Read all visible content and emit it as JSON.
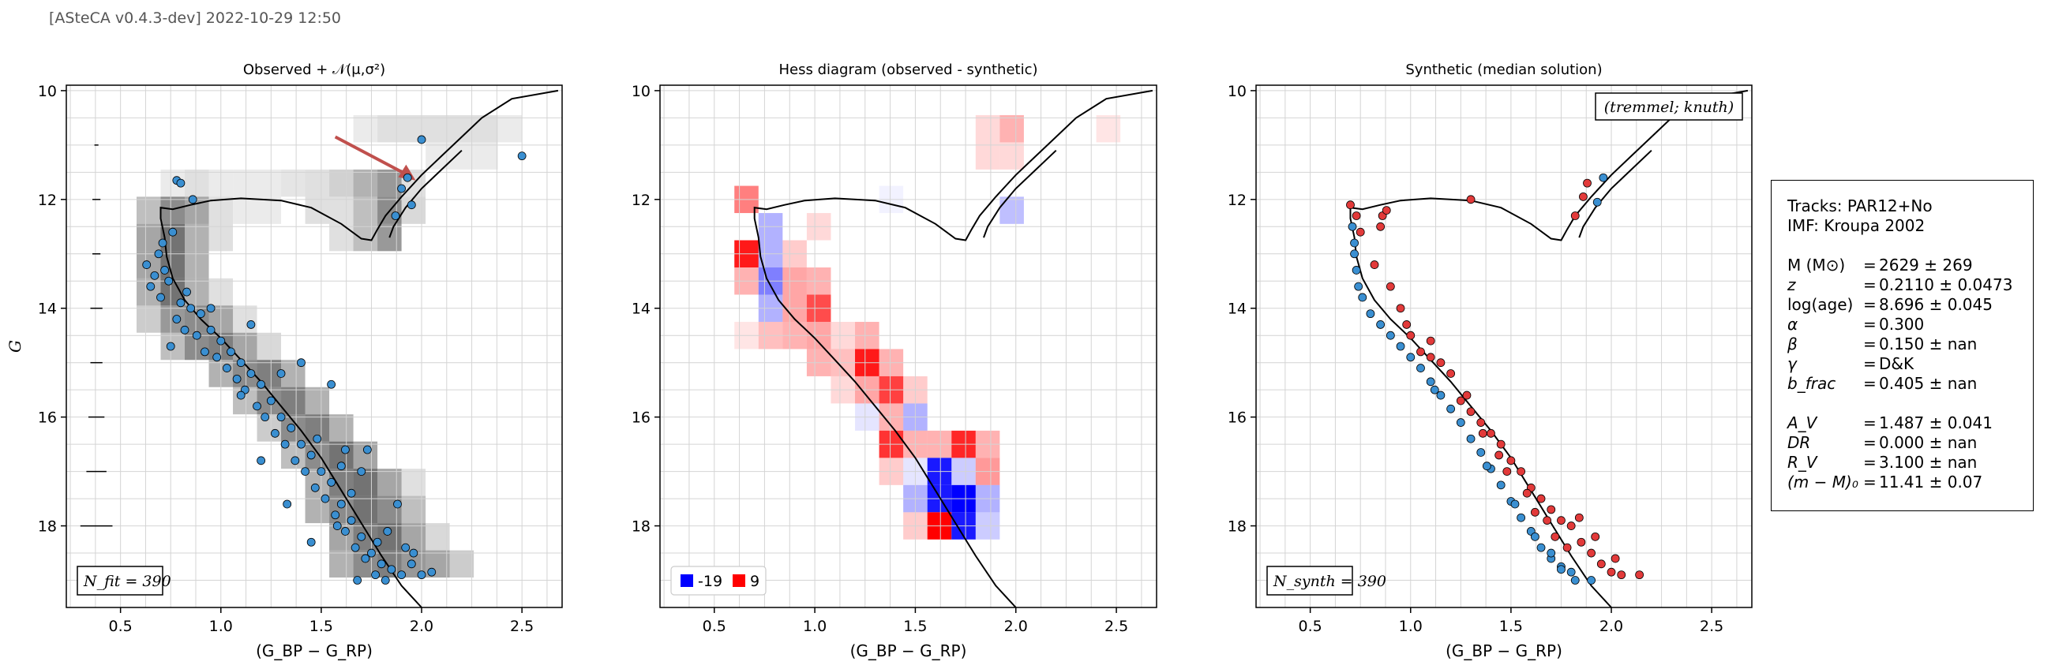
{
  "header": "[ASteCA v0.4.3-dev] 2022-10-29 12:50",
  "colors": {
    "observed_points": "#3a8fd1",
    "synthetic_blue": "#3a8fd1",
    "synthetic_red": "#e23a3a",
    "isochrone": "#000000",
    "arrow": "#c0504d",
    "hess_negative": "#0000ff",
    "hess_positive": "#ff0000"
  },
  "chart_data": [
    {
      "type": "scatter",
      "title": "Observed + 𝒩(μ,σ²)",
      "xlabel": "(G_BP − G_RP)",
      "ylabel": "G",
      "xlim": [
        0.23,
        2.7
      ],
      "ylim": [
        19.5,
        9.9
      ],
      "y_inverted": true,
      "xticks": [
        "0.5",
        "1.0",
        "1.5",
        "2.0",
        "2.5"
      ],
      "yticks": [
        "10",
        "12",
        "14",
        "16",
        "18"
      ],
      "grid": true,
      "annotation": "N_fit = 390",
      "series": [
        {
          "name": "",
          "points": [
            [
              0.63,
              13.2
            ],
            [
              0.65,
              13.6
            ],
            [
              0.67,
              13.4
            ],
            [
              0.69,
              13.0
            ],
            [
              0.7,
              13.8
            ],
            [
              0.72,
              13.3
            ],
            [
              0.71,
              12.8
            ],
            [
              0.74,
              13.5
            ],
            [
              0.76,
              12.6
            ],
            [
              0.78,
              11.65
            ],
            [
              0.8,
              11.7
            ],
            [
              0.83,
              13.7
            ],
            [
              0.86,
              12.0
            ],
            [
              0.75,
              14.7
            ],
            [
              0.78,
              14.2
            ],
            [
              0.8,
              13.9
            ],
            [
              0.82,
              14.4
            ],
            [
              0.85,
              14.0
            ],
            [
              0.88,
              14.5
            ],
            [
              0.9,
              14.1
            ],
            [
              0.92,
              14.8
            ],
            [
              0.95,
              14.4
            ],
            [
              0.98,
              14.9
            ],
            [
              1.0,
              14.6
            ],
            [
              1.03,
              15.1
            ],
            [
              1.05,
              14.8
            ],
            [
              1.08,
              15.3
            ],
            [
              1.1,
              15.0
            ],
            [
              1.12,
              15.5
            ],
            [
              1.15,
              15.2
            ],
            [
              1.18,
              15.8
            ],
            [
              1.2,
              15.4
            ],
            [
              1.22,
              16.0
            ],
            [
              1.25,
              15.7
            ],
            [
              1.27,
              16.3
            ],
            [
              1.3,
              16.0
            ],
            [
              1.32,
              16.5
            ],
            [
              1.35,
              16.2
            ],
            [
              1.37,
              16.8
            ],
            [
              1.4,
              16.5
            ],
            [
              1.42,
              17.0
            ],
            [
              1.45,
              16.7
            ],
            [
              1.47,
              17.3
            ],
            [
              1.5,
              17.0
            ],
            [
              1.52,
              17.5
            ],
            [
              1.55,
              17.2
            ],
            [
              1.57,
              17.8
            ],
            [
              1.6,
              17.6
            ],
            [
              1.62,
              18.1
            ],
            [
              1.65,
              17.9
            ],
            [
              1.67,
              18.4
            ],
            [
              1.7,
              18.2
            ],
            [
              1.72,
              18.6
            ],
            [
              1.75,
              18.5
            ],
            [
              1.77,
              18.9
            ],
            [
              1.8,
              18.7
            ],
            [
              1.82,
              19.0
            ],
            [
              1.85,
              18.8
            ],
            [
              1.9,
              18.9
            ],
            [
              1.95,
              18.7
            ],
            [
              2.0,
              18.9
            ],
            [
              2.05,
              18.85
            ],
            [
              1.88,
              17.6
            ],
            [
              1.73,
              16.6
            ],
            [
              1.55,
              15.4
            ],
            [
              1.4,
              15.0
            ],
            [
              1.2,
              16.8
            ],
            [
              1.33,
              17.6
            ],
            [
              1.1,
              15.6
            ],
            [
              0.95,
              14.0
            ],
            [
              1.87,
              12.3
            ],
            [
              1.9,
              11.8
            ],
            [
              1.95,
              12.1
            ],
            [
              2.0,
              10.9
            ],
            [
              2.5,
              11.2
            ],
            [
              1.93,
              11.6
            ],
            [
              1.6,
              16.9
            ],
            [
              1.48,
              16.4
            ],
            [
              1.58,
              18.0
            ],
            [
              1.7,
              17.0
            ],
            [
              1.78,
              18.3
            ],
            [
              1.83,
              18.1
            ],
            [
              1.92,
              18.4
            ],
            [
              1.3,
              15.2
            ],
            [
              1.15,
              14.3
            ],
            [
              1.65,
              17.4
            ],
            [
              1.62,
              16.6
            ],
            [
              1.45,
              18.3
            ],
            [
              1.68,
              19.0
            ],
            [
              1.96,
              18.5
            ]
          ]
        }
      ]
    },
    {
      "type": "heatmap",
      "title": "Hess diagram (observed - synthetic)",
      "xlabel": "(G_BP − G_RP)",
      "xlim": [
        0.23,
        2.7
      ],
      "ylim": [
        19.5,
        9.9
      ],
      "y_inverted": true,
      "xticks": [
        "0.5",
        "1.0",
        "1.5",
        "2.0",
        "2.5"
      ],
      "yticks": [
        "10",
        "12",
        "14",
        "16",
        "18"
      ],
      "grid": true,
      "legend_position": "lower-left",
      "legend": [
        {
          "label": "-19",
          "color": "#0000ff"
        },
        {
          "label": "9",
          "color": "#ff0000"
        }
      ],
      "value_range": [
        -19,
        9
      ]
    },
    {
      "type": "scatter",
      "title": "Synthetic (median solution)",
      "xlabel": "(G_BP − G_RP)",
      "xlim": [
        0.23,
        2.7
      ],
      "ylim": [
        19.5,
        9.9
      ],
      "y_inverted": true,
      "xticks": [
        "0.5",
        "1.0",
        "1.5",
        "2.0",
        "2.5"
      ],
      "yticks": [
        "10",
        "12",
        "14",
        "16",
        "18"
      ],
      "grid": true,
      "annotation": "N_synth = 390",
      "corner_label": "(tremmel; knuth)",
      "series": [
        {
          "name": "",
          "points": [
            [
              0.72,
              13.0
            ],
            [
              0.73,
              13.3
            ],
            [
              0.74,
              13.6
            ],
            [
              0.76,
              13.8
            ],
            [
              0.8,
              14.1
            ],
            [
              0.85,
              14.3
            ],
            [
              0.9,
              14.5
            ],
            [
              0.95,
              14.7
            ],
            [
              1.0,
              14.9
            ],
            [
              1.05,
              15.1
            ],
            [
              1.1,
              15.35
            ],
            [
              1.15,
              15.6
            ],
            [
              1.2,
              15.85
            ],
            [
              1.25,
              16.1
            ],
            [
              1.3,
              16.4
            ],
            [
              1.35,
              16.65
            ],
            [
              1.4,
              16.95
            ],
            [
              1.45,
              17.25
            ],
            [
              1.5,
              17.55
            ],
            [
              1.55,
              17.85
            ],
            [
              1.6,
              18.1
            ],
            [
              1.65,
              18.4
            ],
            [
              1.7,
              18.6
            ],
            [
              1.75,
              18.75
            ],
            [
              1.8,
              18.85
            ],
            [
              0.71,
              12.5
            ],
            [
              0.72,
              12.8
            ],
            [
              1.12,
              15.5
            ],
            [
              1.38,
              16.9
            ],
            [
              1.52,
              17.6
            ],
            [
              1.62,
              18.2
            ],
            [
              1.7,
              18.5
            ],
            [
              1.75,
              18.8
            ],
            [
              1.82,
              19.0
            ],
            [
              1.9,
              19.0
            ],
            [
              1.93,
              12.05
            ],
            [
              1.96,
              11.6
            ]
          ]
        },
        {
          "name": "",
          "points": [
            [
              0.7,
              12.1
            ],
            [
              0.73,
              12.3
            ],
            [
              0.75,
              12.6
            ],
            [
              0.82,
              13.2
            ],
            [
              0.85,
              12.5
            ],
            [
              0.86,
              12.3
            ],
            [
              0.88,
              12.2
            ],
            [
              0.9,
              13.6
            ],
            [
              0.95,
              14.0
            ],
            [
              1.0,
              14.5
            ],
            [
              1.05,
              14.8
            ],
            [
              1.1,
              14.9
            ],
            [
              1.15,
              15.0
            ],
            [
              1.2,
              15.2
            ],
            [
              1.25,
              15.7
            ],
            [
              1.3,
              15.9
            ],
            [
              1.35,
              16.1
            ],
            [
              1.4,
              16.3
            ],
            [
              1.45,
              16.5
            ],
            [
              1.5,
              16.8
            ],
            [
              1.55,
              17.0
            ],
            [
              1.6,
              17.3
            ],
            [
              1.65,
              17.5
            ],
            [
              1.7,
              17.7
            ],
            [
              1.75,
              17.9
            ],
            [
              1.8,
              18.0
            ],
            [
              1.85,
              18.3
            ],
            [
              1.9,
              18.5
            ],
            [
              1.95,
              18.7
            ],
            [
              2.0,
              18.85
            ],
            [
              2.05,
              18.9
            ],
            [
              2.14,
              18.9
            ],
            [
              1.3,
              12.0
            ],
            [
              1.82,
              12.3
            ],
            [
              1.86,
              11.95
            ],
            [
              1.88,
              11.7
            ],
            [
              1.36,
              16.3
            ],
            [
              1.48,
              17.0
            ],
            [
              1.58,
              17.4
            ],
            [
              1.68,
              17.9
            ],
            [
              1.78,
              18.4
            ],
            [
              1.1,
              14.6
            ],
            [
              0.98,
              14.3
            ],
            [
              1.72,
              18.2
            ],
            [
              1.62,
              17.75
            ],
            [
              1.92,
              18.2
            ],
            [
              2.02,
              18.6
            ],
            [
              1.84,
              17.85
            ],
            [
              1.44,
              16.7
            ],
            [
              1.28,
              15.6
            ]
          ]
        }
      ]
    }
  ],
  "params": {
    "tracks": "Tracks: PAR12+No",
    "imf": "IMF: Kroupa 2002",
    "rows": [
      {
        "key": "M (M⊙)",
        "val": "2629 ± 269",
        "upright": true
      },
      {
        "key": "z",
        "val": "0.2110 ± 0.0473"
      },
      {
        "key": "log(age)",
        "val": "8.696 ± 0.045",
        "upright": true
      },
      {
        "key": "α",
        "val": "0.300"
      },
      {
        "key": "β",
        "val": "0.150 ± nan"
      },
      {
        "key": "γ",
        "val": "D&K"
      },
      {
        "key": "b_frac",
        "val": "0.405 ± nan"
      },
      {
        "key": "",
        "val": "",
        "gap": true
      },
      {
        "key": "A_V",
        "val": "1.487 ± 0.041"
      },
      {
        "key": "DR",
        "val": "0.000 ± nan"
      },
      {
        "key": "R_V",
        "val": "3.100 ± nan"
      },
      {
        "key": "(m − M)₀",
        "val": "11.41 ± 0.07"
      }
    ]
  }
}
